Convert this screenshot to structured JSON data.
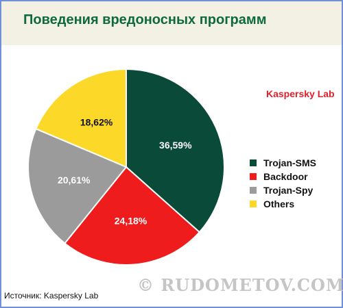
{
  "title": "Поведения вредоносных программ",
  "brand_label": "Kaspersky Lab",
  "source_text": "Источник: Kaspersky Lab",
  "watermark": "© RUDOMETOV.COM",
  "chart_data": {
    "type": "pie",
    "start_angle": "12 o'clock",
    "direction": "clockwise",
    "slices": [
      {
        "name": "Trojan-SMS",
        "value": 36.59,
        "label": "36,59%",
        "color": "#0a4a38"
      },
      {
        "name": "Backdoor",
        "value": 24.18,
        "label": "24,18%",
        "color": "#ee1c1c"
      },
      {
        "name": "Trojan-Spy",
        "value": 20.61,
        "label": "20,61%",
        "color": "#9b9b9b"
      },
      {
        "name": "Others",
        "value": 18.62,
        "label": "18,62%",
        "color": "#fcd928"
      }
    ],
    "legend_position": "right"
  }
}
